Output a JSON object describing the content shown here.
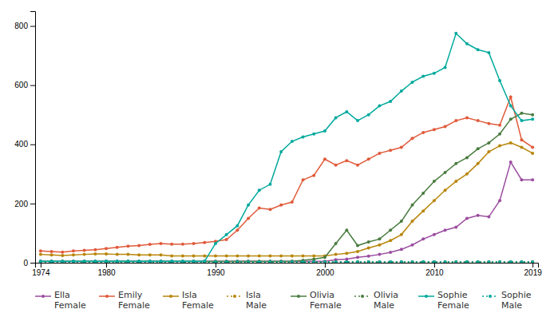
{
  "chart_data": {
    "type": "line",
    "x": [
      1974,
      1975,
      1976,
      1977,
      1978,
      1979,
      1980,
      1981,
      1982,
      1983,
      1984,
      1985,
      1986,
      1987,
      1988,
      1989,
      1990,
      1991,
      1992,
      1993,
      1994,
      1995,
      1996,
      1997,
      1998,
      1999,
      2000,
      2001,
      2002,
      2003,
      2004,
      2005,
      2006,
      2007,
      2008,
      2009,
      2010,
      2011,
      2012,
      2013,
      2014,
      2015,
      2016,
      2017,
      2018,
      2019
    ],
    "series": [
      {
        "name": "Ella\nFemale",
        "color": "#9b4da0",
        "line_style": "solid",
        "marker": "circle",
        "values": [
          5,
          5,
          5,
          5,
          5,
          5,
          5,
          5,
          5,
          5,
          5,
          5,
          5,
          5,
          5,
          5,
          5,
          5,
          5,
          5,
          5,
          5,
          5,
          5,
          5,
          5,
          5,
          10,
          12,
          18,
          22,
          28,
          35,
          45,
          60,
          80,
          95,
          110,
          120,
          150,
          160,
          155,
          210,
          340,
          280,
          280
        ]
      },
      {
        "name": "Emily\nFemale",
        "color": "#e05a3a",
        "line_style": "solid",
        "marker": "circle",
        "values": [
          40,
          38,
          36,
          40,
          42,
          44,
          48,
          52,
          56,
          58,
          62,
          65,
          63,
          63,
          65,
          68,
          72,
          78,
          110,
          150,
          185,
          180,
          195,
          205,
          280,
          295,
          350,
          330,
          345,
          330,
          350,
          370,
          380,
          390,
          420,
          440,
          450,
          460,
          480,
          490,
          480,
          470,
          465,
          560,
          415,
          390
        ]
      },
      {
        "name": "Isla\nFemale",
        "color": "#b8860b",
        "line_style": "solid",
        "marker": "circle",
        "values": [
          28,
          26,
          24,
          26,
          28,
          30,
          30,
          28,
          28,
          26,
          26,
          26,
          23,
          23,
          23,
          23,
          23,
          23,
          23,
          23,
          23,
          23,
          23,
          23,
          23,
          23,
          23,
          28,
          32,
          38,
          50,
          60,
          75,
          95,
          140,
          175,
          210,
          245,
          275,
          300,
          335,
          375,
          395,
          405,
          390,
          370
        ]
      },
      {
        "name": "Isla\nMale",
        "color": "#b8860b",
        "line_style": "dotted",
        "marker": "circle",
        "values": [
          3,
          3,
          3,
          3,
          3,
          3,
          3,
          3,
          3,
          3,
          3,
          3,
          3,
          3,
          3,
          3,
          3,
          3,
          3,
          3,
          3,
          3,
          3,
          3,
          3,
          3,
          3,
          3,
          3,
          3,
          3,
          3,
          3,
          3,
          3,
          3,
          3,
          3,
          3,
          3,
          3,
          3,
          3,
          3,
          3,
          3
        ]
      },
      {
        "name": "Olivia\nFemale",
        "color": "#4a7c40",
        "line_style": "solid",
        "marker": "circle",
        "values": [
          5,
          5,
          5,
          5,
          5,
          5,
          5,
          5,
          5,
          5,
          5,
          5,
          5,
          5,
          5,
          5,
          5,
          5,
          5,
          5,
          5,
          5,
          5,
          5,
          8,
          12,
          18,
          65,
          110,
          58,
          70,
          80,
          110,
          140,
          195,
          235,
          275,
          305,
          335,
          355,
          385,
          405,
          435,
          485,
          505,
          500
        ]
      },
      {
        "name": "Olivia\nMale",
        "color": "#4a7c40",
        "line_style": "dotted",
        "marker": "circle",
        "values": [
          3,
          3,
          3,
          3,
          3,
          3,
          3,
          3,
          3,
          3,
          3,
          3,
          3,
          3,
          3,
          3,
          3,
          3,
          3,
          3,
          3,
          3,
          3,
          3,
          3,
          3,
          3,
          3,
          3,
          3,
          3,
          3,
          3,
          3,
          3,
          3,
          3,
          3,
          3,
          3,
          3,
          3,
          3,
          3,
          3,
          3
        ]
      },
      {
        "name": "Sophie\nFemale",
        "color": "#00a99d",
        "line_style": "solid",
        "marker": "circle",
        "values": [
          5,
          5,
          5,
          5,
          5,
          5,
          5,
          5,
          5,
          5,
          5,
          5,
          5,
          5,
          5,
          5,
          65,
          95,
          125,
          195,
          245,
          265,
          375,
          410,
          425,
          435,
          445,
          490,
          510,
          480,
          500,
          530,
          545,
          580,
          610,
          630,
          640,
          660,
          775,
          740,
          720,
          710,
          615,
          530,
          480,
          485
        ]
      },
      {
        "name": "Sophie\nMale",
        "color": "#00a99d",
        "line_style": "dotted",
        "marker": "circle",
        "values": [
          3,
          3,
          3,
          3,
          3,
          3,
          3,
          3,
          3,
          3,
          3,
          3,
          3,
          3,
          3,
          3,
          3,
          3,
          3,
          3,
          3,
          3,
          3,
          3,
          3,
          3,
          3,
          3,
          3,
          3,
          3,
          3,
          3,
          3,
          3,
          3,
          3,
          3,
          3,
          3,
          3,
          3,
          3,
          3,
          3,
          3
        ]
      }
    ],
    "xlim": [
      1973.5,
      2019.5
    ],
    "ylim": [
      0,
      850
    ],
    "xticks": [
      1974,
      1980,
      1990,
      2000,
      2010,
      2019
    ],
    "yticks": [
      0,
      200,
      400,
      600,
      800
    ],
    "grid": false,
    "legend": "bottom"
  }
}
